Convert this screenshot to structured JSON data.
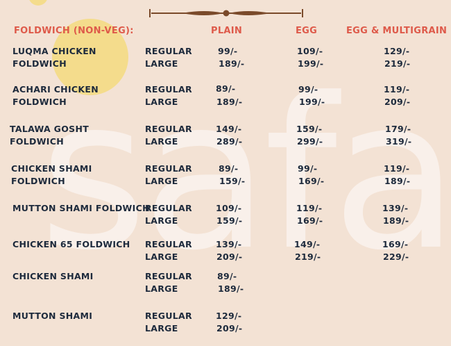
{
  "menu": {
    "section": "FOLDWICH (NON-VEG):",
    "columns": [
      "PLAIN",
      "EGG",
      "EGG & MULTIGRAIN"
    ],
    "watermark": "safa",
    "items": [
      {
        "name": [
          "LUQMA CHICKEN",
          "FOLDWICH"
        ],
        "sizes": [
          "REGULAR",
          "LARGE"
        ],
        "prices": [
          [
            "99/-",
            "189/-"
          ],
          [
            "109/-",
            "199/-"
          ],
          [
            "129/-",
            "219/-"
          ]
        ]
      },
      {
        "name": [
          "ACHARI CHICKEN",
          "FOLDWICH"
        ],
        "sizes": [
          "REGULAR",
          "LARGE"
        ],
        "prices": [
          [
            "89/-",
            "189/-"
          ],
          [
            "99/-",
            "199/-"
          ],
          [
            "119/-",
            "209/-"
          ]
        ]
      },
      {
        "name": [
          "TALAWA GOSHT",
          "FOLDWICH"
        ],
        "sizes": [
          "REGULAR",
          "LARGE"
        ],
        "prices": [
          [
            "149/-",
            "289/-"
          ],
          [
            "159/-",
            "299/-"
          ],
          [
            "179/-",
            "319/-"
          ]
        ]
      },
      {
        "name": [
          "CHICKEN SHAMI",
          "FOLDWICH"
        ],
        "sizes": [
          "REGULAR",
          "LARGE"
        ],
        "prices": [
          [
            "89/-",
            "159/-"
          ],
          [
            "99/-",
            "169/-"
          ],
          [
            "119/-",
            "189/-"
          ]
        ]
      },
      {
        "name": [
          "MUTTON SHAMI FOLDWICH"
        ],
        "sizes": [
          "REGULAR",
          "LARGE"
        ],
        "prices": [
          [
            "109/-",
            "159/-"
          ],
          [
            "119/-",
            "169/-"
          ],
          [
            "139/-",
            "189/-"
          ]
        ]
      },
      {
        "name": [
          "CHICKEN 65 FOLDWICH"
        ],
        "sizes": [
          "REGULAR",
          "LARGE"
        ],
        "prices": [
          [
            "139/-",
            "209/-"
          ],
          [
            "149/-",
            "219/-"
          ],
          [
            "169/-",
            "229/-"
          ]
        ]
      },
      {
        "name": [
          "CHICKEN SHAMI"
        ],
        "sizes": [
          "REGULAR",
          "LARGE"
        ],
        "prices": [
          [
            "89/-",
            "189/-"
          ]
        ]
      },
      {
        "name": [
          "MUTTON SHAMI"
        ],
        "sizes": [
          "REGULAR",
          "LARGE"
        ],
        "prices": [
          [
            "129/-",
            "209/-"
          ]
        ]
      }
    ]
  }
}
